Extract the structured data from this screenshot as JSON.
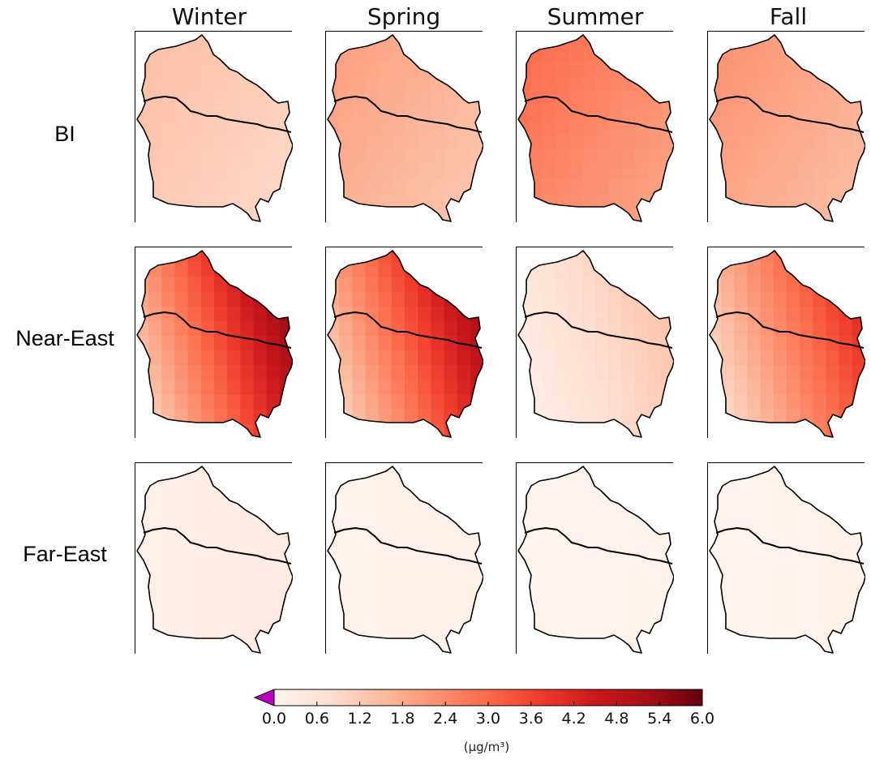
{
  "chart_data": {
    "type": "heatmap",
    "seasons": [
      "Winter",
      "Spring",
      "Summer",
      "Fall"
    ],
    "sources": [
      "BI",
      "Near-East",
      "Far-East"
    ],
    "panels_mean_value": [
      [
        1.2,
        1.7,
        2.5,
        1.9
      ],
      [
        4.0,
        3.8,
        1.0,
        3.0
      ],
      [
        0.3,
        0.15,
        0.1,
        0.12
      ]
    ],
    "colorbar": {
      "ticks": [
        "0.0",
        "0.6",
        "1.2",
        "1.8",
        "2.4",
        "3.0",
        "3.6",
        "4.2",
        "4.8",
        "5.4",
        "6.0"
      ],
      "range": [
        0,
        6
      ],
      "colormap": "Reds",
      "extend": "min",
      "extend_color": "#c000c0",
      "unit": "(μg/m³)"
    }
  }
}
